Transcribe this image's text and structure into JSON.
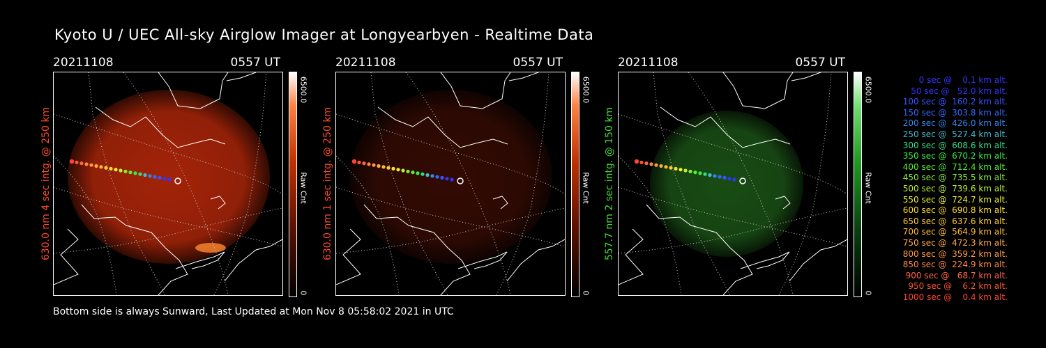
{
  "title": "Kyoto U / UEC All-sky Airglow Imager at Longyearbyen - Realtime Data",
  "footer": "Bottom side is always Sunward, Last Updated at Mon Nov  8 05:58:02 2021 in UTC",
  "panels": [
    {
      "date": "20211108",
      "time": "0557 UT",
      "ylabel": "630.0 nm 4 sec intg. @ 250 km",
      "label_color": "#ff4a2a",
      "cbar_max": "6500.0",
      "cbar_min": "0",
      "cbar_unit": "Raw Cnt",
      "glow_color": "#c02a0a"
    },
    {
      "date": "20211108",
      "time": "0557 UT",
      "ylabel": "630.0 nm 1 sec intg. @ 250 km",
      "label_color": "#ff4a2a",
      "cbar_max": "6500.0",
      "cbar_min": "0",
      "cbar_unit": "Raw Cnt",
      "glow_color": "#3a0c04"
    },
    {
      "date": "20211108",
      "time": "0557 UT",
      "ylabel": "557.7 nm 2 sec intg. @ 150 km",
      "label_color": "#44dd33",
      "cbar_max": "6500.0",
      "cbar_min": "0",
      "cbar_unit": "Raw Cnt",
      "glow_color": "#1d5a18"
    }
  ],
  "legend": [
    {
      "text": "   0 sec @    0.1 km alt.",
      "color": "#3333ff"
    },
    {
      "text": "  50 sec @   52.0 km alt.",
      "color": "#3333ff"
    },
    {
      "text": " 100 sec @  160.2 km alt.",
      "color": "#3355ff"
    },
    {
      "text": " 150 sec @  303.8 km alt.",
      "color": "#3366ff"
    },
    {
      "text": " 200 sec @  426.0 km alt.",
      "color": "#3388ee"
    },
    {
      "text": " 250 sec @  527.4 km alt.",
      "color": "#44bbcc"
    },
    {
      "text": " 300 sec @  608.6 km alt.",
      "color": "#33dd88"
    },
    {
      "text": " 350 sec @  670.2 km alt.",
      "color": "#33ee44"
    },
    {
      "text": " 400 sec @  712.4 km alt.",
      "color": "#55ee33"
    },
    {
      "text": " 450 sec @  735.5 km alt.",
      "color": "#88ee33"
    },
    {
      "text": " 500 sec @  739.6 km alt.",
      "color": "#bbee33"
    },
    {
      "text": " 550 sec @  724.7 km alt.",
      "color": "#eeee33"
    },
    {
      "text": " 600 sec @  690.8 km alt.",
      "color": "#ffdd33"
    },
    {
      "text": " 650 sec @  637.6 km alt.",
      "color": "#ffcc33"
    },
    {
      "text": " 700 sec @  564.9 km alt.",
      "color": "#ffbb33"
    },
    {
      "text": " 750 sec @  472.3 km alt.",
      "color": "#ffaa44"
    },
    {
      "text": " 800 sec @  359.2 km alt.",
      "color": "#ff9944"
    },
    {
      "text": " 850 sec @  224.9 km alt.",
      "color": "#ff8844"
    },
    {
      "text": " 900 sec @   68.7 km alt.",
      "color": "#ff6644"
    },
    {
      "text": " 950 sec @    6.2 km alt.",
      "color": "#ff5533"
    },
    {
      "text": "1000 sec @    0.4 km alt.",
      "color": "#ff4433"
    }
  ]
}
